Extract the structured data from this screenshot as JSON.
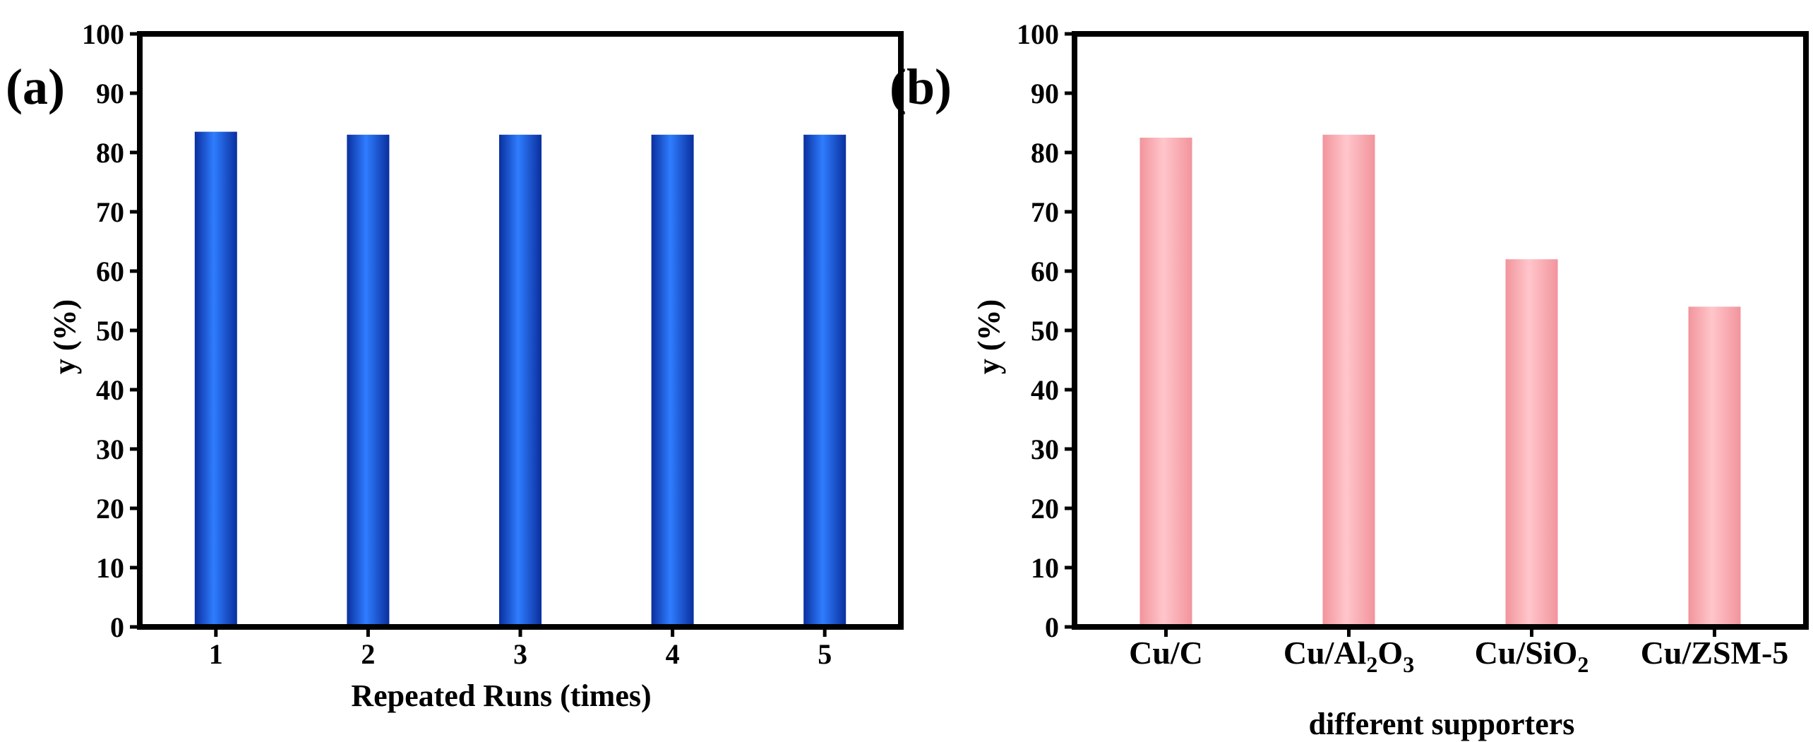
{
  "chart_data": [
    {
      "type": "bar",
      "panel_label": "(a)",
      "title": "",
      "xlabel": "Repeated Runs (times)",
      "ylabel": "y (%)",
      "ylim": [
        0,
        100
      ],
      "yticks": [
        "0",
        "10",
        "20",
        "30",
        "40",
        "50",
        "60",
        "70",
        "80",
        "90",
        "100"
      ],
      "categories": [
        "1",
        "2",
        "3",
        "4",
        "5"
      ],
      "values": [
        83.5,
        83.0,
        83.0,
        83.0,
        83.0
      ],
      "bar_color": "#1f5ce8",
      "grid": false,
      "legend": "none"
    },
    {
      "type": "bar",
      "panel_label": "(b)",
      "title": "",
      "xlabel": "different supporters",
      "ylabel": "y (%)",
      "ylim": [
        0,
        100
      ],
      "yticks": [
        "0",
        "10",
        "20",
        "30",
        "40",
        "50",
        "60",
        "70",
        "80",
        "90",
        "100"
      ],
      "categories": [
        {
          "base": "Cu/C",
          "sub": "",
          "tail": "",
          "sub2": ""
        },
        {
          "base": "Cu/Al",
          "sub": "2",
          "tail": "O",
          "sub2": "3"
        },
        {
          "base": "Cu/SiO",
          "sub": "2",
          "tail": "",
          "sub2": ""
        },
        {
          "base": "Cu/ZSM-5",
          "sub": "",
          "tail": "",
          "sub2": ""
        }
      ],
      "values": [
        82.5,
        83.0,
        62.0,
        54.0
      ],
      "bar_color": "#f7a6ad",
      "grid": false,
      "legend": "none"
    }
  ]
}
